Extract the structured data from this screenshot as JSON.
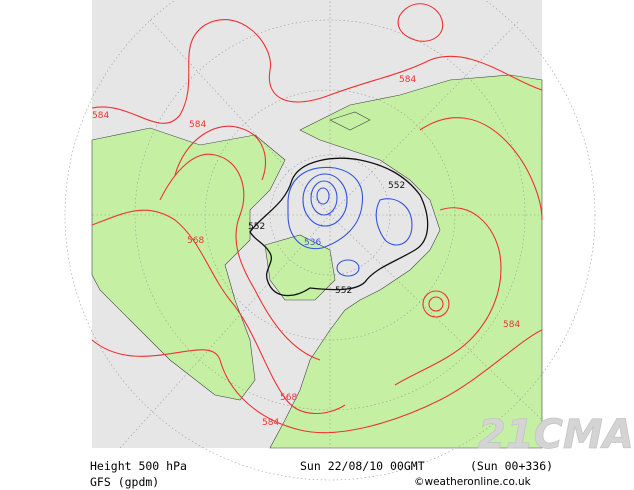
{
  "product": {
    "field": "Height 500 hPa",
    "model": "GFS (gpdm)",
    "valid_time": "Sun 22/08/10 00GMT",
    "run": "(Sun 00+336)",
    "source": "©weatheronline.co.uk",
    "watermark": "21CMA"
  },
  "contour_labels": {
    "red_a": "584",
    "red_b": "584",
    "red_c": "584",
    "red_d": "568",
    "red_e": "584",
    "red_f": "568",
    "red_g": "584",
    "black_a": "552",
    "black_b": "552",
    "black_c": "552",
    "blue_a": "536"
  },
  "colors": {
    "ocean": "#e6e6e6",
    "land": "#c5f0a4",
    "coast": "#333333",
    "red_contour": "#ee3333",
    "black_contour": "#111111",
    "blue_contour": "#3355dd",
    "watermark": "#cfcfcf"
  }
}
